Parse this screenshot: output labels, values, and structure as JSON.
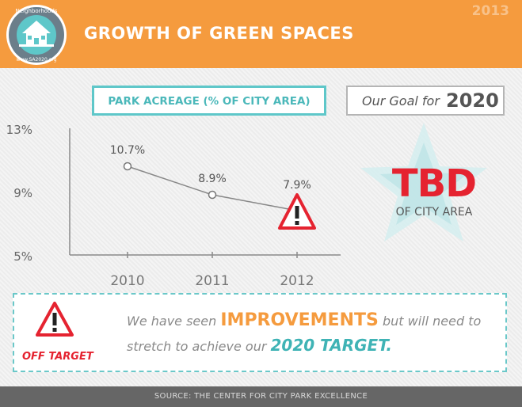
{
  "header": {
    "title": "GROWTH OF GREEN SPACES",
    "year": "2013",
    "logo_top_text": "Neighborhoods",
    "logo_bottom_text": "www.SA2020.org",
    "logo_icon": "house-icon"
  },
  "chart_label": "PARK ACREAGE (% OF CITY AREA)",
  "goal": {
    "text": "Our Goal for",
    "year": "2020",
    "value": "TBD",
    "sub": "OF CITY AREA",
    "icon": "star-icon"
  },
  "chart_data": {
    "type": "line",
    "title": "PARK ACREAGE (% OF CITY AREA)",
    "categories": [
      "2010",
      "2011",
      "2012"
    ],
    "series": [
      {
        "values": [
          10.7,
          8.9,
          7.9
        ]
      }
    ],
    "data_labels": [
      "10.7%",
      "8.9%",
      "7.9%"
    ],
    "y_ticks": [
      5,
      9,
      13
    ],
    "y_tick_labels": [
      "5%",
      "9%",
      "13%"
    ],
    "ylim": [
      5,
      13
    ],
    "grid": false,
    "line_color": "#888888",
    "warning_on": "2012"
  },
  "banner": {
    "warning_icon": "warning-triangle-icon",
    "off_target": "OFF TARGET",
    "line1_pre": "We have seen",
    "line1_highlight": "IMPROVEMENTS",
    "line1_post": "but will need to",
    "line2_pre": "stretch to achieve our",
    "line2_highlight": "2020 TARGET."
  },
  "footer": {
    "source": "SOURCE: THE CENTER FOR CITY PARK EXCELLENCE"
  },
  "colors": {
    "header": "#f59b3e",
    "accent_teal": "#5ec7c9",
    "warning_red": "#e52330",
    "footer": "#666666"
  }
}
